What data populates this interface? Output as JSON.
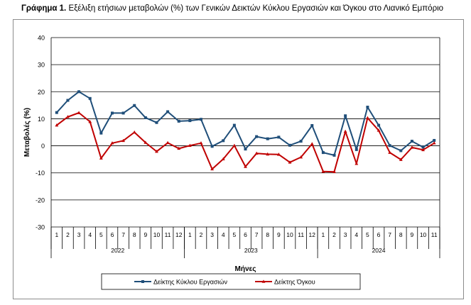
{
  "caption": {
    "label": "Γράφημα 1.",
    "text": "Εξέλιξη ετήσιων μεταβολών (%) των Γενικών Δεικτών Κύκλου Εργασιών και Όγκου στο Λιανικό Εμπόριο"
  },
  "chart_data": {
    "type": "line",
    "ylabel": "Μεταβολές (%)",
    "xlabel": "Μήνες",
    "ylim": [
      -30,
      40
    ],
    "yticks": [
      -30,
      -20,
      -10,
      0,
      10,
      20,
      30,
      40
    ],
    "grid": true,
    "legend_position": "bottom",
    "years": [
      {
        "label": "2022",
        "months": [
          "1",
          "2",
          "3",
          "4",
          "5",
          "6",
          "7",
          "8",
          "9",
          "10",
          "11",
          "12"
        ]
      },
      {
        "label": "2023",
        "months": [
          "1",
          "2",
          "3",
          "4",
          "5",
          "6",
          "7",
          "8",
          "9",
          "10",
          "11",
          "12"
        ]
      },
      {
        "label": "2024",
        "months": [
          "1",
          "2",
          "3",
          "4",
          "5",
          "6",
          "7",
          "8",
          "9",
          "10",
          "11"
        ]
      }
    ],
    "series": [
      {
        "name": "Δείκτης Κύκλου Εργασιών",
        "color": "#1f4e79",
        "marker": "square",
        "values": [
          12.3,
          16.8,
          20.0,
          17.5,
          4.7,
          12.1,
          12.1,
          14.9,
          10.4,
          8.6,
          12.6,
          9.1,
          9.3,
          9.8,
          -0.2,
          1.9,
          7.6,
          -1.2,
          3.4,
          2.6,
          3.2,
          0.2,
          1.7,
          7.5,
          -2.5,
          -3.5,
          11.1,
          -1.4,
          14.3,
          7.6,
          0.1,
          -1.8,
          1.7,
          -0.5,
          2.0
        ]
      },
      {
        "name": "Δείκτης Όγκου",
        "color": "#c00000",
        "marker": "triangle",
        "values": [
          7.6,
          10.7,
          12.2,
          8.9,
          -4.6,
          1.0,
          1.9,
          5.0,
          1.2,
          -2.1,
          1.1,
          -1.0,
          0.1,
          1.0,
          -8.6,
          -4.9,
          0.1,
          -7.7,
          -2.8,
          -3.1,
          -3.2,
          -6.1,
          -4.2,
          0.7,
          -9.5,
          -9.6,
          5.3,
          -6.6,
          10.3,
          5.7,
          -2.5,
          -5.1,
          -0.6,
          -1.5,
          1.0
        ]
      }
    ]
  }
}
